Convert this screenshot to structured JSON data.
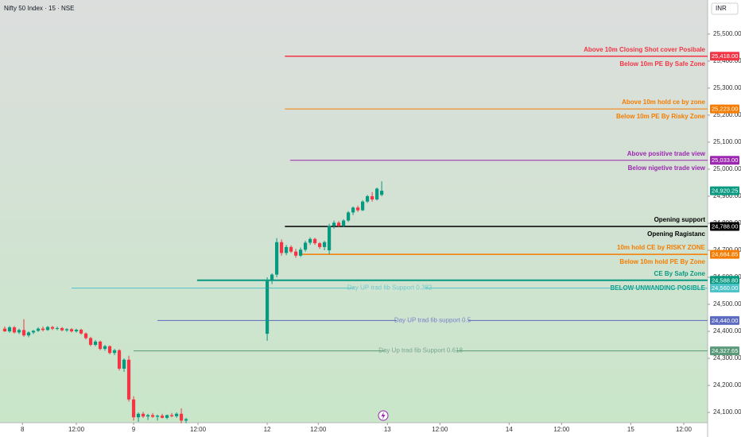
{
  "chart_data": {
    "type": "candlestick",
    "title": "Nifty 50 Index · 15 · NSE",
    "currency": "INR",
    "up_color": "#089981",
    "down_color": "#f23645",
    "grid": false,
    "xlim": [
      -4,
      144.3
    ],
    "xticks": [
      {
        "value": 0.7,
        "label": "8"
      },
      {
        "value": 12,
        "label": "12:00"
      },
      {
        "value": 24,
        "label": "9"
      },
      {
        "value": 37.5,
        "label": "12:00"
      },
      {
        "value": 52,
        "label": "12"
      },
      {
        "value": 62.7,
        "label": "12:00"
      },
      {
        "value": 77.2,
        "label": "13"
      },
      {
        "value": 88.2,
        "label": "12:00"
      },
      {
        "value": 102.7,
        "label": "14"
      },
      {
        "value": 113.7,
        "label": "12:00"
      },
      {
        "value": 128.2,
        "label": "15"
      },
      {
        "value": 139.3,
        "label": "12:00"
      }
    ],
    "ylim": [
      24062,
      25626
    ],
    "yticks": [
      {
        "value": 25500,
        "label": "25,500.00"
      },
      {
        "value": 25400,
        "label": "25,400.00"
      },
      {
        "value": 25300,
        "label": "25,300.00"
      },
      {
        "value": 25200,
        "label": "25,200.00"
      },
      {
        "value": 25100,
        "label": "25,100.00"
      },
      {
        "value": 25000,
        "label": "25,000.00"
      },
      {
        "value": 24900,
        "label": "24,900.00"
      },
      {
        "value": 24800,
        "label": "24,800.00"
      },
      {
        "value": 24700,
        "label": "24,700.00"
      },
      {
        "value": 24600,
        "label": "24,600.00"
      },
      {
        "value": 24500,
        "label": "24,500.00"
      },
      {
        "value": 24400,
        "label": "24,400.00"
      },
      {
        "value": 24300,
        "label": "24,300.00"
      },
      {
        "value": 24200,
        "label": "24,200.00"
      },
      {
        "value": 24100,
        "label": "24,100.00"
      }
    ],
    "x": [
      -3,
      -2,
      -1,
      0,
      1,
      2,
      3,
      4,
      5,
      6,
      7,
      8,
      9,
      10,
      11,
      12,
      13,
      14,
      15,
      16,
      17,
      18,
      19,
      20,
      21,
      22,
      23,
      24,
      25,
      26,
      27,
      28,
      29,
      30,
      31,
      32,
      33,
      34,
      35,
      52,
      53,
      54,
      55,
      56,
      57,
      58,
      59,
      60,
      61,
      62,
      63,
      64,
      65,
      66,
      67,
      68,
      69,
      70,
      71,
      72,
      73,
      74,
      75,
      76
    ],
    "open": [
      24410,
      24400,
      24415,
      24396,
      24405,
      24385,
      24396,
      24402,
      24410,
      24405,
      24416,
      24410,
      24412,
      24404,
      24408,
      24400,
      24406,
      24392,
      24375,
      24350,
      24362,
      24335,
      24345,
      24320,
      24330,
      24262,
      24295,
      24148,
      24082,
      24095,
      24085,
      24090,
      24084,
      24088,
      24080,
      24090,
      24086,
      24095,
      24070,
      24391,
      24590,
      24610,
      24730,
      24690,
      24712,
      24695,
      24680,
      24702,
      24728,
      24742,
      24726,
      24712,
      24700,
      24790,
      24802,
      24790,
      24810,
      24840,
      24858,
      24848,
      24880,
      24900,
      24888,
      24905
    ],
    "high": [
      24418,
      24420,
      24420,
      24410,
      24445,
      24400,
      24405,
      24415,
      24418,
      24420,
      24420,
      24418,
      24416,
      24412,
      24412,
      24410,
      24410,
      24396,
      24380,
      24368,
      24366,
      24350,
      24348,
      24335,
      24334,
      24300,
      24310,
      24160,
      24100,
      24102,
      24095,
      24098,
      24092,
      24095,
      24092,
      24098,
      24100,
      24115,
      24080,
      24600,
      24615,
      24745,
      24740,
      24720,
      24718,
      24705,
      24710,
      24735,
      24748,
      24746,
      24730,
      24735,
      24798,
      24810,
      24808,
      24815,
      24845,
      24862,
      24865,
      24885,
      24905,
      24915,
      24932,
      24955
    ],
    "low": [
      24398,
      24395,
      24392,
      24390,
      24380,
      24378,
      24390,
      24398,
      24400,
      24402,
      24405,
      24404,
      24400,
      24398,
      24396,
      24395,
      24388,
      24370,
      24345,
      24345,
      24330,
      24328,
      24315,
      24312,
      24255,
      24250,
      24140,
      24070,
      24065,
      24080,
      24072,
      24080,
      24070,
      24078,
      24075,
      24082,
      24080,
      24060,
      24060,
      24365,
      24575,
      24600,
      24680,
      24682,
      24690,
      24672,
      24675,
      24695,
      24720,
      24720,
      24705,
      24700,
      24685,
      24780,
      24785,
      24786,
      24805,
      24830,
      24842,
      24845,
      24875,
      24880,
      24884,
      24900
    ],
    "close": [
      24400,
      24415,
      24396,
      24405,
      24385,
      24396,
      24402,
      24410,
      24405,
      24416,
      24410,
      24412,
      24404,
      24408,
      24400,
      24406,
      24392,
      24375,
      24350,
      24362,
      24335,
      24345,
      24320,
      24330,
      24262,
      24295,
      24148,
      24082,
      24095,
      24085,
      24090,
      24084,
      24088,
      24080,
      24090,
      24086,
      24095,
      24070,
      24075,
      24590,
      24610,
      24730,
      24690,
      24712,
      24695,
      24680,
      24702,
      24728,
      24742,
      24726,
      24712,
      24730,
      24790,
      24802,
      24790,
      24810,
      24840,
      24858,
      24848,
      24880,
      24900,
      24888,
      24928,
      24920.25
    ],
    "last_price": {
      "value": 24920.25,
      "label": "24,920.25"
    },
    "levels": [
      {
        "price": 25418,
        "price_label": "25,418.00",
        "color": "#f23645",
        "from": 55.7,
        "width": 1.5,
        "above": "Above 10m Closing Shot cover Posibale",
        "below": "Below 10m PE By Safe Zone"
      },
      {
        "price": 25223,
        "price_label": "25,223.00",
        "color": "#f57c00",
        "from": 55.7,
        "width": 1,
        "above": "Above 10m hold ce by zone",
        "below": "Below 10m PE By Risky Zone"
      },
      {
        "price": 25033,
        "price_label": "25,033.00",
        "color": "#9c27b0",
        "from": 56.8,
        "width": 1,
        "above": "Above positive trade view",
        "below": "Below nigetive trade view"
      },
      {
        "price": 24788,
        "price_label": "24,788.00",
        "color": "#000000",
        "from": 55.7,
        "width": 1.5,
        "above": "Opening support",
        "below": "Opening Ragistanc"
      },
      {
        "price": 24684.85,
        "price_label": "24,684.85",
        "color": "#f57c00",
        "from": 59,
        "width": 1.5,
        "above": "10m hold CE by RISKY ZONE",
        "below": "Below 10m hold PE By Zone"
      },
      {
        "price": 24588.8,
        "price_label": "24,588.80",
        "color": "#089981",
        "from": 37.3,
        "width": 2,
        "above": "CE By Safp Zone",
        "below": "BELOW UNWANDING POSIBLE"
      },
      {
        "price": 24560,
        "price_label": "24,560.00",
        "color": "#4fc3c8",
        "from": 11,
        "width": 1,
        "middle": "Day UP trad fib Support 0.382"
      },
      {
        "price": 24440,
        "price_label": "24,440.00",
        "color": "#5c6bc0",
        "from": 29,
        "width": 1,
        "middle": "Day UP trad fib support 0.5"
      },
      {
        "price": 24327.65,
        "price_label": "24,327.65",
        "color": "#5a9a78",
        "from": 24,
        "width": 1,
        "middle": "Day Up trad fib Support 0.618"
      }
    ]
  }
}
